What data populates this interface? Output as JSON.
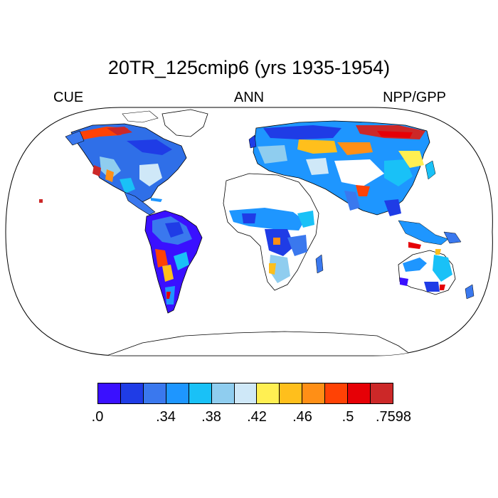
{
  "title": "20TR_125cmip6 (yrs 1935-1954)",
  "subtitle_left": "CUE",
  "subtitle_center": "ANN",
  "subtitle_right": "NPP/GPP",
  "colorbar": {
    "colors": [
      "#3a10ff",
      "#1f3ce6",
      "#3a78ee",
      "#1e96ff",
      "#19c1f7",
      "#8fcdef",
      "#cfe8f8",
      "#ffef52",
      "#ffbf1c",
      "#ff8f16",
      "#ff4205",
      "#e60006",
      "#cc2828"
    ],
    "labels": [
      ".0",
      ".34",
      ".38",
      ".42",
      ".46",
      ".5",
      ".7598"
    ]
  },
  "map": {
    "projection": "Robinson",
    "ocean_color": "#ffffff",
    "no_data_color": "#ffffff",
    "coastline_color": "#000000"
  }
}
